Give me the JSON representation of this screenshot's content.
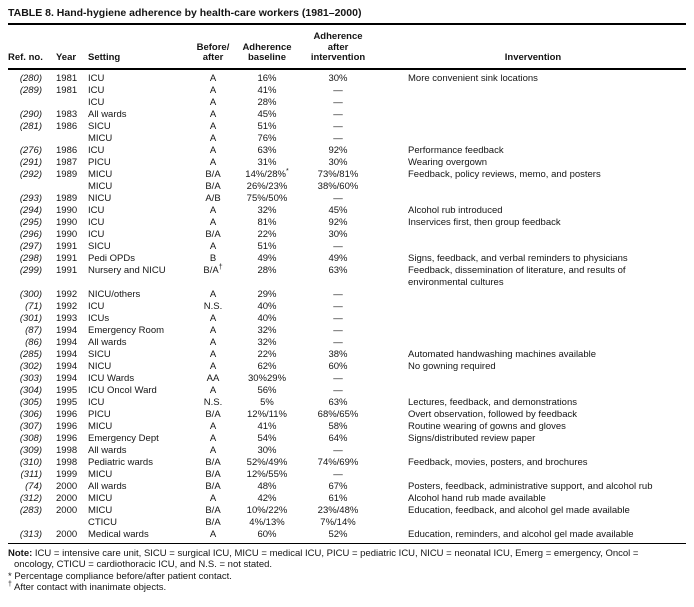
{
  "title": "TABLE 8. Hand-hygiene adherence by health-care workers (1981–2000)",
  "table": {
    "headers": {
      "ref": "Ref. no.",
      "year": "Year",
      "setting": "Setting",
      "before_after": "Before/\nafter",
      "baseline": "Adherence\nbaseline",
      "after": "Adherence\nafter\nintervention",
      "intervention": "Invervention"
    },
    "rows": [
      {
        "ref": "(280)",
        "year": "1981",
        "setting": "ICU",
        "ba": "A",
        "baseline": "16%",
        "after": "30%",
        "intervention": "More convenient sink locations"
      },
      {
        "ref": "(289)",
        "year": "1981",
        "setting": "ICU",
        "ba": "A",
        "baseline": "41%",
        "after": "—",
        "intervention": ""
      },
      {
        "ref": "",
        "year": "",
        "setting": "ICU",
        "ba": "A",
        "baseline": "28%",
        "after": "—",
        "intervention": ""
      },
      {
        "ref": "(290)",
        "year": "1983",
        "setting": "All wards",
        "ba": "A",
        "baseline": "45%",
        "after": "—",
        "intervention": ""
      },
      {
        "ref": "(281)",
        "year": "1986",
        "setting": "SICU",
        "ba": "A",
        "baseline": "51%",
        "after": "—",
        "intervention": ""
      },
      {
        "ref": "",
        "year": "",
        "setting": "MICU",
        "ba": "A",
        "baseline": "76%",
        "after": "—",
        "intervention": ""
      },
      {
        "ref": "(276)",
        "year": "1986",
        "setting": "ICU",
        "ba": "A",
        "baseline": "63%",
        "after": "92%",
        "intervention": "Performance feedback"
      },
      {
        "ref": "(291)",
        "year": "1987",
        "setting": "PICU",
        "ba": "A",
        "baseline": "31%",
        "after": "30%",
        "intervention": "Wearing overgown"
      },
      {
        "ref": "(292)",
        "year": "1989",
        "setting": "MICU",
        "ba": "B/A",
        "baseline": "14%/28%",
        "baseline_sup": "*",
        "after": "73%/81%",
        "intervention": "Feedback, policy reviews, memo, and posters"
      },
      {
        "ref": "",
        "year": "",
        "setting": "MICU",
        "ba": "B/A",
        "baseline": "26%/23%",
        "after": "38%/60%",
        "intervention": ""
      },
      {
        "ref": "(293)",
        "year": "1989",
        "setting": "NICU",
        "ba": "A/B",
        "baseline": "75%/50%",
        "after": "—",
        "intervention": ""
      },
      {
        "ref": "(294)",
        "year": "1990",
        "setting": "ICU",
        "ba": "A",
        "baseline": "32%",
        "after": "45%",
        "intervention": "Alcohol rub introduced"
      },
      {
        "ref": "(295)",
        "year": "1990",
        "setting": "ICU",
        "ba": "A",
        "baseline": "81%",
        "after": "92%",
        "intervention": "Inservices first, then group feedback"
      },
      {
        "ref": "(296)",
        "year": "1990",
        "setting": "ICU",
        "ba": "B/A",
        "baseline": "22%",
        "after": "30%",
        "intervention": ""
      },
      {
        "ref": "(297)",
        "year": "1991",
        "setting": "SICU",
        "ba": "A",
        "baseline": "51%",
        "after": "—",
        "intervention": ""
      },
      {
        "ref": "(298)",
        "year": "1991",
        "setting": "Pedi OPDs",
        "ba": "B",
        "baseline": "49%",
        "after": "49%",
        "intervention": "Signs, feedback, and verbal reminders to physicians"
      },
      {
        "ref": "(299)",
        "year": "1991",
        "setting": "Nursery and NICU",
        "ba": "B/A",
        "ba_sup": "†",
        "baseline": "28%",
        "after": "63%",
        "intervention": "Feedback, dissemination of literature, and results of\nenvironmental cultures"
      },
      {
        "ref": "(300)",
        "year": "1992",
        "setting": "NICU/others",
        "ba": "A",
        "baseline": "29%",
        "after": "—",
        "intervention": ""
      },
      {
        "ref": "(71)",
        "year": "1992",
        "setting": "ICU",
        "ba": "N.S.",
        "baseline": "40%",
        "after": "—",
        "intervention": ""
      },
      {
        "ref": "(301)",
        "year": "1993",
        "setting": "ICUs",
        "ba": "A",
        "baseline": "40%",
        "after": "—",
        "intervention": ""
      },
      {
        "ref": "(87)",
        "year": "1994",
        "setting": "Emergency Room",
        "ba": "A",
        "baseline": "32%",
        "after": "—",
        "intervention": ""
      },
      {
        "ref": "(86)",
        "year": "1994",
        "setting": "All wards",
        "ba": "A",
        "baseline": "32%",
        "after": "—",
        "intervention": ""
      },
      {
        "ref": "(285)",
        "year": "1994",
        "setting": "SICU",
        "ba": "A",
        "baseline": "22%",
        "after": "38%",
        "intervention": "Automated handwashing machines available"
      },
      {
        "ref": "(302)",
        "year": "1994",
        "setting": "NICU",
        "ba": "A",
        "baseline": "62%",
        "after": "60%",
        "intervention": "No gowning required"
      },
      {
        "ref": "(303)",
        "year": "1994",
        "setting": "ICU Wards",
        "ba": "AA",
        "baseline": "30%29%",
        "after": "—",
        "intervention": ""
      },
      {
        "ref": "(304)",
        "year": "1995",
        "setting": "ICU Oncol Ward",
        "ba": "A",
        "baseline": "56%",
        "after": "—",
        "intervention": ""
      },
      {
        "ref": "(305)",
        "year": "1995",
        "setting": "ICU",
        "ba": "N.S.",
        "baseline": "5%",
        "after": "63%",
        "intervention": "Lectures, feedback, and demonstrations"
      },
      {
        "ref": "(306)",
        "year": "1996",
        "setting": "PICU",
        "ba": "B/A",
        "baseline": "12%/11%",
        "after": "68%/65%",
        "intervention": "Overt observation, followed by feedback"
      },
      {
        "ref": "(307)",
        "year": "1996",
        "setting": "MICU",
        "ba": "A",
        "baseline": "41%",
        "after": "58%",
        "intervention": "Routine wearing of gowns and gloves"
      },
      {
        "ref": "(308)",
        "year": "1996",
        "setting": "Emergency Dept",
        "ba": "A",
        "baseline": "54%",
        "after": "64%",
        "intervention": "Signs/distributed review paper"
      },
      {
        "ref": "(309)",
        "year": "1998",
        "setting": "All wards",
        "ba": "A",
        "baseline": "30%",
        "after": "—",
        "intervention": ""
      },
      {
        "ref": "(310)",
        "year": "1998",
        "setting": "Pediatric wards",
        "ba": "B/A",
        "baseline": "52%/49%",
        "after": "74%/69%",
        "intervention": "Feedback, movies, posters, and brochures"
      },
      {
        "ref": "(311)",
        "year": "1999",
        "setting": "MICU",
        "ba": "B/A",
        "baseline": "12%/55%",
        "after": "—",
        "intervention": ""
      },
      {
        "ref": "(74)",
        "year": "2000",
        "setting": "All wards",
        "ba": "B/A",
        "baseline": "48%",
        "after": "67%",
        "intervention": "Posters, feedback, administrative support, and alcohol rub"
      },
      {
        "ref": "(312)",
        "year": "2000",
        "setting": "MICU",
        "ba": "A",
        "baseline": "42%",
        "after": "61%",
        "intervention": "Alcohol hand rub made available"
      },
      {
        "ref": "(283)",
        "year": "2000",
        "setting": "MICU",
        "ba": "B/A",
        "baseline": "10%/22%",
        "after": "23%/48%",
        "intervention": "Education, feedback, and alcohol gel made available"
      },
      {
        "ref": "",
        "year": "",
        "setting": "CTICU",
        "ba": "B/A",
        "baseline": "4%/13%",
        "after": "7%/14%",
        "intervention": ""
      },
      {
        "ref": "(313)",
        "year": "2000",
        "setting": "Medical wards",
        "ba": "A",
        "baseline": "60%",
        "after": "52%",
        "intervention": "Education, reminders, and alcohol gel made available"
      }
    ]
  },
  "footnotes": {
    "note_label": "Note:",
    "note_line1": "ICU = intensive care unit, SICU = surgical ICU, MICU = medical ICU, PICU = pediatric ICU, NICU = neonatal ICU, Emerg = emergency, Oncol =",
    "note_line2": "oncology, CTICU = cardiothoracic ICU, and N.S. = not stated.",
    "fn1": {
      "marker": "*",
      "text": "Percentage compliance before/after patient contact."
    },
    "fn2": {
      "marker": "†",
      "text": "After contact with inanimate objects."
    }
  }
}
